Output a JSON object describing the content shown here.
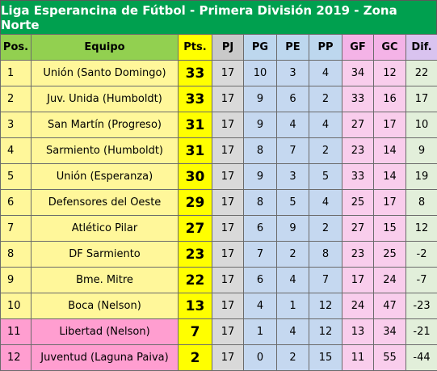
{
  "title": "Liga Esperancina de Fútbol - Primera División 2019 - Zona Norte",
  "headers": {
    "pos": "Pos.",
    "equipo": "Equipo",
    "pts": "Pts.",
    "pj": "PJ",
    "pg": "PG",
    "pe": "PE",
    "pp": "PP",
    "gf": "GF",
    "gc": "GC",
    "dif": "Dif."
  },
  "colors": {
    "title_bg": "#00a04f",
    "title_text": "#ffffff",
    "standard_row": "#fff79a",
    "relegation_row": "#ff9ed0",
    "points": "#ffff00",
    "pj": "#d9d9d9",
    "pg_pe_pp": "#c5d8f0",
    "gf_gc": "#f9cdec",
    "dif": "#e2efda"
  },
  "rows": [
    {
      "pos": "1",
      "equipo": "Unión (Santo Domingo)",
      "pts": "33",
      "pj": "17",
      "pg": "10",
      "pe": "3",
      "pp": "4",
      "gf": "34",
      "gc": "12",
      "dif": "22",
      "zone": "yellow"
    },
    {
      "pos": "2",
      "equipo": "Juv. Unida (Humboldt)",
      "pts": "33",
      "pj": "17",
      "pg": "9",
      "pe": "6",
      "pp": "2",
      "gf": "33",
      "gc": "16",
      "dif": "17",
      "zone": "yellow"
    },
    {
      "pos": "3",
      "equipo": "San Martín (Progreso)",
      "pts": "31",
      "pj": "17",
      "pg": "9",
      "pe": "4",
      "pp": "4",
      "gf": "27",
      "gc": "17",
      "dif": "10",
      "zone": "yellow"
    },
    {
      "pos": "4",
      "equipo": "Sarmiento (Humboldt)",
      "pts": "31",
      "pj": "17",
      "pg": "8",
      "pe": "7",
      "pp": "2",
      "gf": "23",
      "gc": "14",
      "dif": "9",
      "zone": "yellow"
    },
    {
      "pos": "5",
      "equipo": "Unión (Esperanza)",
      "pts": "30",
      "pj": "17",
      "pg": "9",
      "pe": "3",
      "pp": "5",
      "gf": "33",
      "gc": "14",
      "dif": "19",
      "zone": "yellow"
    },
    {
      "pos": "6",
      "equipo": "Defensores del Oeste",
      "pts": "29",
      "pj": "17",
      "pg": "8",
      "pe": "5",
      "pp": "4",
      "gf": "25",
      "gc": "17",
      "dif": "8",
      "zone": "yellow"
    },
    {
      "pos": "7",
      "equipo": "Atlético Pilar",
      "pts": "27",
      "pj": "17",
      "pg": "6",
      "pe": "9",
      "pp": "2",
      "gf": "27",
      "gc": "15",
      "dif": "12",
      "zone": "yellow"
    },
    {
      "pos": "8",
      "equipo": "DF Sarmiento",
      "pts": "23",
      "pj": "17",
      "pg": "7",
      "pe": "2",
      "pp": "8",
      "gf": "23",
      "gc": "25",
      "dif": "-2",
      "zone": "yellow"
    },
    {
      "pos": "9",
      "equipo": "Bme. Mitre",
      "pts": "22",
      "pj": "17",
      "pg": "6",
      "pe": "4",
      "pp": "7",
      "gf": "17",
      "gc": "24",
      "dif": "-7",
      "zone": "yellow"
    },
    {
      "pos": "10",
      "equipo": "Boca (Nelson)",
      "pts": "13",
      "pj": "17",
      "pg": "4",
      "pe": "1",
      "pp": "12",
      "gf": "24",
      "gc": "47",
      "dif": "-23",
      "zone": "yellow"
    },
    {
      "pos": "11",
      "equipo": "Libertad (Nelson)",
      "pts": "7",
      "pj": "17",
      "pg": "1",
      "pe": "4",
      "pp": "12",
      "gf": "13",
      "gc": "34",
      "dif": "-21",
      "zone": "pink"
    },
    {
      "pos": "12",
      "equipo": "Juventud (Laguna Paiva)",
      "pts": "2",
      "pj": "17",
      "pg": "0",
      "pe": "2",
      "pp": "15",
      "gf": "11",
      "gc": "55",
      "dif": "-44",
      "zone": "pink"
    }
  ]
}
